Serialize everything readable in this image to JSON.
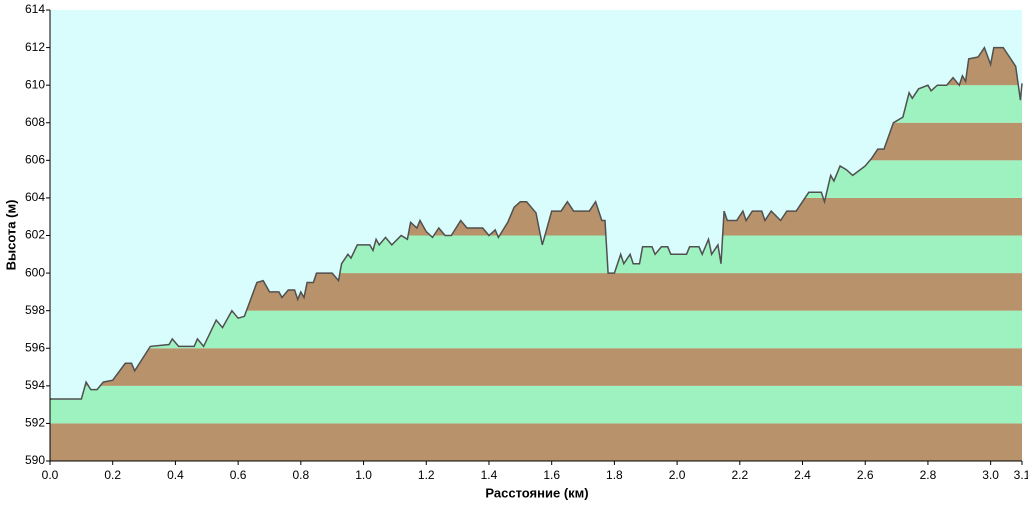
{
  "chart_data": {
    "type": "area",
    "x_label": "Расстояние  (км)",
    "y_label": "Высота (м)",
    "x": [
      0,
      0.1,
      0.115,
      0.13,
      0.15,
      0.17,
      0.2,
      0.24,
      0.26,
      0.27,
      0.32,
      0.38,
      0.39,
      0.41,
      0.46,
      0.47,
      0.49,
      0.53,
      0.55,
      0.58,
      0.6,
      0.62,
      0.66,
      0.68,
      0.7,
      0.73,
      0.74,
      0.76,
      0.78,
      0.79,
      0.8,
      0.81,
      0.82,
      0.84,
      0.85,
      0.9,
      0.92,
      0.93,
      0.95,
      0.96,
      0.98,
      1.02,
      1.03,
      1.04,
      1.05,
      1.07,
      1.09,
      1.12,
      1.14,
      1.15,
      1.17,
      1.18,
      1.2,
      1.22,
      1.24,
      1.26,
      1.28,
      1.31,
      1.33,
      1.38,
      1.4,
      1.42,
      1.43,
      1.46,
      1.48,
      1.5,
      1.52,
      1.55,
      1.57,
      1.6,
      1.63,
      1.65,
      1.67,
      1.72,
      1.74,
      1.76,
      1.77,
      1.78,
      1.8,
      1.82,
      1.83,
      1.85,
      1.86,
      1.88,
      1.89,
      1.92,
      1.93,
      1.95,
      1.97,
      1.98,
      2.03,
      2.04,
      2.07,
      2.08,
      2.1,
      2.11,
      2.13,
      2.14,
      2.15,
      2.16,
      2.19,
      2.21,
      2.22,
      2.24,
      2.27,
      2.28,
      2.3,
      2.33,
      2.35,
      2.38,
      2.42,
      2.46,
      2.47,
      2.49,
      2.5,
      2.52,
      2.54,
      2.56,
      2.6,
      2.62,
      2.64,
      2.66,
      2.69,
      2.72,
      2.74,
      2.75,
      2.77,
      2.8,
      2.81,
      2.83,
      2.86,
      2.88,
      2.9,
      2.91,
      2.92,
      2.93,
      2.96,
      2.98,
      3.0,
      3.01,
      3.04,
      3.06,
      3.08,
      3.095,
      3.1
    ],
    "values": [
      593.3,
      593.3,
      594.2,
      593.8,
      593.8,
      594.2,
      594.3,
      595.2,
      595.2,
      594.8,
      596.1,
      596.2,
      596.5,
      596.1,
      596.1,
      596.5,
      596.1,
      597.5,
      597.1,
      598.0,
      597.6,
      597.7,
      599.5,
      599.6,
      599.0,
      599.0,
      598.7,
      599.1,
      599.1,
      598.6,
      599.0,
      598.7,
      599.5,
      599.5,
      600.0,
      600.0,
      599.6,
      600.5,
      601.0,
      600.8,
      601.5,
      601.5,
      601.2,
      601.8,
      601.5,
      601.9,
      601.5,
      602.0,
      601.8,
      602.7,
      602.4,
      602.8,
      602.2,
      601.9,
      602.4,
      602.0,
      602.0,
      602.8,
      602.4,
      602.4,
      602.0,
      602.3,
      601.9,
      602.7,
      603.5,
      603.8,
      603.8,
      603.2,
      601.5,
      603.3,
      603.3,
      603.8,
      603.3,
      603.3,
      603.8,
      602.8,
      602.8,
      600.0,
      600.0,
      601.0,
      600.5,
      601.0,
      600.5,
      600.5,
      601.4,
      601.4,
      601.0,
      601.4,
      601.4,
      601.0,
      601.0,
      601.4,
      601.4,
      601.0,
      601.8,
      601.0,
      601.5,
      600.5,
      603.3,
      602.8,
      602.8,
      603.3,
      602.8,
      603.3,
      603.3,
      602.8,
      603.3,
      602.8,
      603.3,
      603.3,
      604.3,
      604.3,
      603.8,
      605.2,
      604.9,
      605.7,
      605.5,
      605.2,
      605.7,
      606.1,
      606.6,
      606.6,
      608.0,
      608.3,
      609.6,
      609.3,
      609.8,
      610.0,
      609.7,
      610.0,
      610.0,
      610.4,
      610.0,
      610.5,
      610.2,
      611.4,
      611.5,
      612.0,
      611.1,
      612.0,
      612.0,
      611.5,
      611.0,
      609.2,
      610.1
    ],
    "xlim": [
      0,
      3.1
    ],
    "ylim": [
      590,
      614
    ],
    "xticks": [
      {
        "value": 0,
        "label": "0.0"
      },
      0.2,
      0.4,
      0.6,
      0.8,
      {
        "value": 1,
        "label": "1.0"
      },
      1.2,
      1.4,
      1.6,
      1.8,
      {
        "value": 2,
        "label": "2.0"
      },
      2.2,
      2.4,
      2.6,
      2.8,
      {
        "value": 3,
        "label": "3.0"
      },
      3.1
    ],
    "yticks": [
      590,
      592,
      594,
      596,
      598,
      600,
      602,
      604,
      606,
      608,
      610,
      612,
      614
    ],
    "band_colors": [
      "#b8926a",
      "#9ef2c0"
    ],
    "background": "#d9fcfc",
    "line_color": "#505050"
  }
}
